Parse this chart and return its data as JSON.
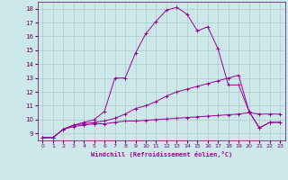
{
  "xlabel": "Windchill (Refroidissement éolien,°C)",
  "xlim": [
    -0.5,
    23.5
  ],
  "ylim": [
    8.5,
    18.5
  ],
  "yticks": [
    9,
    10,
    11,
    12,
    13,
    14,
    15,
    16,
    17,
    18
  ],
  "xticks": [
    0,
    1,
    2,
    3,
    4,
    5,
    6,
    7,
    8,
    9,
    10,
    11,
    12,
    13,
    14,
    15,
    16,
    17,
    18,
    19,
    20,
    21,
    22,
    23
  ],
  "bg_color": "#cce8e8",
  "line_color": "#990099",
  "grid_color": "#aacccc",
  "lines": [
    {
      "x": [
        0,
        1,
        2,
        3,
        4,
        5,
        6,
        7,
        8,
        9,
        10,
        11,
        12,
        13,
        14,
        15,
        16,
        17,
        18,
        19,
        20,
        21,
        22,
        23
      ],
      "y": [
        8.7,
        8.7,
        9.3,
        9.5,
        9.6,
        9.7,
        9.7,
        9.8,
        9.9,
        9.9,
        9.95,
        10.0,
        10.05,
        10.1,
        10.15,
        10.2,
        10.25,
        10.3,
        10.35,
        10.4,
        10.5,
        10.4,
        10.4,
        10.4
      ]
    },
    {
      "x": [
        0,
        1,
        2,
        3,
        4,
        5,
        6,
        7,
        8,
        9,
        10,
        11,
        12,
        13,
        14,
        15,
        16,
        17,
        18,
        19,
        20,
        21,
        22,
        23
      ],
      "y": [
        8.7,
        8.7,
        9.3,
        9.6,
        9.7,
        9.8,
        9.9,
        10.1,
        10.4,
        10.8,
        11.0,
        11.3,
        11.7,
        12.0,
        12.2,
        12.4,
        12.6,
        12.8,
        13.0,
        13.2,
        10.6,
        9.4,
        9.8,
        9.8
      ]
    },
    {
      "x": [
        0,
        1,
        2,
        3,
        4,
        5,
        6,
        7,
        8,
        9,
        10,
        11,
        12,
        13,
        14,
        15,
        16,
        17,
        18,
        19,
        20,
        21,
        22,
        23
      ],
      "y": [
        8.7,
        8.7,
        9.3,
        9.6,
        9.8,
        10.0,
        10.6,
        13.0,
        13.0,
        14.8,
        16.2,
        17.1,
        17.9,
        18.1,
        17.6,
        16.4,
        16.7,
        15.1,
        12.5,
        12.5,
        10.6,
        9.4,
        9.8,
        9.8
      ]
    }
  ]
}
